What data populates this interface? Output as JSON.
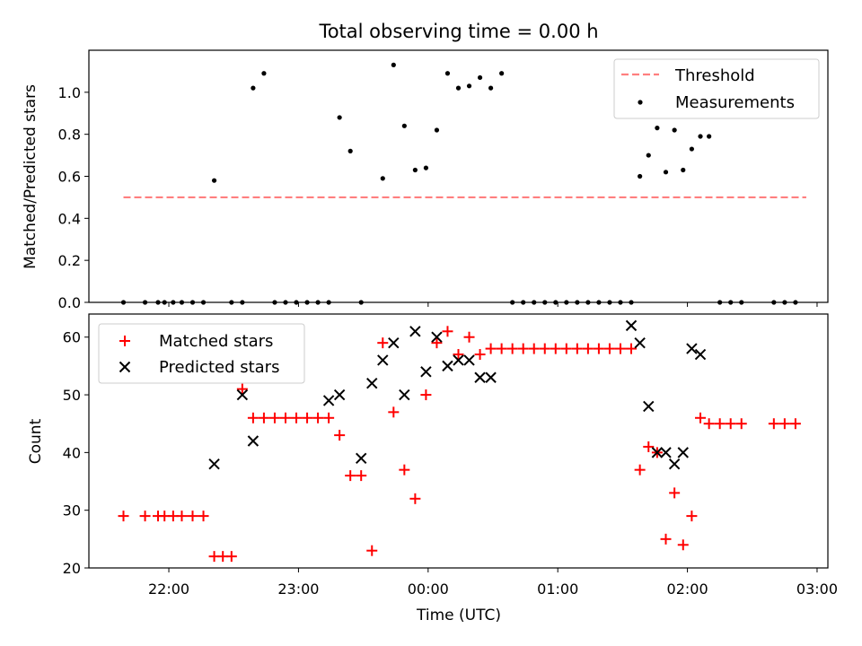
{
  "chart_data": [
    {
      "type": "scatter",
      "title": "Total observing time = 0.00 h",
      "xlabel": "",
      "ylabel": "Matched/Predicted stars",
      "xlim": [
        "21:23",
        "03:05"
      ],
      "ylim": [
        0,
        1.2
      ],
      "yticks": [
        "0.0",
        "0.2",
        "0.4",
        "0.6",
        "0.8",
        "1.0"
      ],
      "xticks": [
        "22:00",
        "23:00",
        "00:00",
        "01:00",
        "02:00",
        "03:00"
      ],
      "legend_position": "top-right",
      "legend": [
        {
          "label": "Threshold",
          "style": "dashed",
          "color": "#ff7f7f"
        },
        {
          "label": "Measurements",
          "style": "point",
          "color": "#000000"
        }
      ],
      "threshold": {
        "value": 0.5,
        "x": [
          "21:39",
          "02:55"
        ],
        "color": "#ff7f7f"
      },
      "measurements": {
        "color": "#000000",
        "x": [
          "21:39",
          "21:49",
          "21:55",
          "21:58",
          "22:02",
          "22:06",
          "22:11",
          "22:16",
          "22:21",
          "22:29",
          "22:34",
          "22:39",
          "22:44",
          "22:49",
          "22:54",
          "22:59",
          "23:04",
          "23:09",
          "23:14",
          "23:19",
          "23:24",
          "23:29",
          "23:39",
          "23:44",
          "23:49",
          "23:54",
          "23:59",
          "00:04",
          "00:09",
          "00:14",
          "00:19",
          "00:24",
          "00:29",
          "00:34",
          "00:39",
          "00:44",
          "00:49",
          "00:54",
          "00:59",
          "01:04",
          "01:09",
          "01:14",
          "01:19",
          "01:24",
          "01:29",
          "01:34",
          "01:38",
          "01:42",
          "01:46",
          "01:50",
          "01:54",
          "01:58",
          "02:02",
          "02:06",
          "02:10",
          "02:15",
          "02:20",
          "02:25",
          "02:40",
          "02:45",
          "02:50"
        ],
        "y": [
          0,
          0,
          0,
          0,
          0,
          0,
          0,
          0,
          0.58,
          0,
          0,
          1.02,
          1.09,
          0,
          0,
          0,
          0,
          0,
          0,
          0.88,
          0.72,
          0,
          0.59,
          1.13,
          0.84,
          0.63,
          0.64,
          0.82,
          1.09,
          1.02,
          1.03,
          1.07,
          1.02,
          1.09,
          0,
          0,
          0,
          0,
          0,
          0,
          0,
          0,
          0,
          0,
          0,
          0,
          0.6,
          0.7,
          0.83,
          0.62,
          0.82,
          0.63,
          0.73,
          0.79,
          0.79,
          0,
          0,
          0,
          0,
          0,
          0
        ]
      }
    },
    {
      "type": "scatter",
      "title": "",
      "xlabel": "Time (UTC)",
      "ylabel": "Count",
      "xlim": [
        "21:23",
        "03:05"
      ],
      "ylim": [
        20,
        64
      ],
      "yticks": [
        "20",
        "30",
        "40",
        "50",
        "60"
      ],
      "xticks": [
        "22:00",
        "23:00",
        "00:00",
        "01:00",
        "02:00",
        "03:00"
      ],
      "legend_position": "top-left",
      "series": [
        {
          "name": "Matched stars",
          "marker": "plus",
          "color": "#ff0000",
          "x": [
            "21:39",
            "21:49",
            "21:55",
            "21:58",
            "22:02",
            "22:06",
            "22:11",
            "22:16",
            "22:21",
            "22:25",
            "22:29",
            "22:34",
            "22:39",
            "22:44",
            "22:49",
            "22:54",
            "22:59",
            "23:04",
            "23:09",
            "23:14",
            "23:19",
            "23:24",
            "23:29",
            "23:34",
            "23:39",
            "23:44",
            "23:49",
            "23:54",
            "23:59",
            "00:04",
            "00:09",
            "00:14",
            "00:19",
            "00:24",
            "00:29",
            "00:34",
            "00:39",
            "00:44",
            "00:49",
            "00:54",
            "00:59",
            "01:04",
            "01:09",
            "01:14",
            "01:19",
            "01:24",
            "01:29",
            "01:34",
            "01:38",
            "01:42",
            "01:46",
            "01:50",
            "01:54",
            "01:58",
            "02:02",
            "02:06",
            "02:10",
            "02:15",
            "02:20",
            "02:25",
            "02:40",
            "02:45",
            "02:50"
          ],
          "y": [
            29,
            29,
            29,
            29,
            29,
            29,
            29,
            29,
            22,
            22,
            22,
            51,
            46,
            46,
            46,
            46,
            46,
            46,
            46,
            46,
            43,
            36,
            36,
            23,
            59,
            47,
            37,
            32,
            50,
            59,
            61,
            57,
            60,
            57,
            58,
            58,
            58,
            58,
            58,
            58,
            58,
            58,
            58,
            58,
            58,
            58,
            58,
            58,
            37,
            41,
            40,
            25,
            33,
            24,
            29,
            46,
            45,
            45,
            45,
            45,
            45,
            45,
            45
          ]
        },
        {
          "name": "Predicted stars",
          "marker": "x",
          "color": "#000000",
          "x": [
            "22:21",
            "22:34",
            "22:39",
            "23:14",
            "23:19",
            "23:29",
            "23:34",
            "23:39",
            "23:44",
            "23:49",
            "23:54",
            "23:59",
            "00:04",
            "00:09",
            "00:14",
            "00:19",
            "00:24",
            "00:29",
            "01:34",
            "01:38",
            "01:42",
            "01:46",
            "01:50",
            "01:54",
            "01:58",
            "02:02",
            "02:06"
          ],
          "y": [
            38,
            50,
            42,
            49,
            50,
            39,
            52,
            56,
            59,
            50,
            61,
            54,
            60,
            55,
            56,
            56,
            53,
            53,
            62,
            59,
            48,
            40,
            40,
            38,
            40,
            58,
            57
          ]
        }
      ]
    }
  ]
}
